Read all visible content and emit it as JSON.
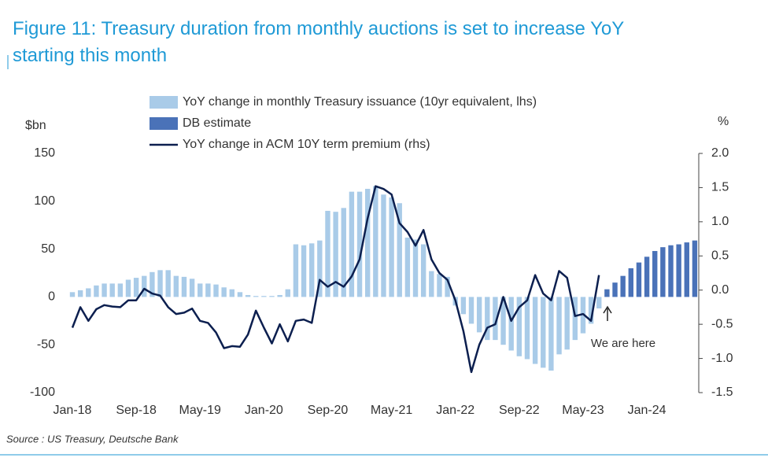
{
  "chart_data": {
    "type": "bar_line",
    "title_lines": [
      "Figure 11: Treasury duration from monthly auctions is set to increase YoY",
      "starting this month"
    ],
    "y_label": "$bn",
    "y2_label": "%",
    "source": "Source : US Treasury, Deutsche Bank",
    "annotation": "We are here",
    "categories": [
      "Jan-18",
      null,
      null,
      null,
      null,
      null,
      null,
      null,
      "Sep-18",
      null,
      null,
      null,
      null,
      null,
      null,
      null,
      "May-19",
      null,
      null,
      null,
      null,
      null,
      null,
      null,
      "Jan-20",
      null,
      null,
      null,
      null,
      null,
      null,
      null,
      "Sep-20",
      null,
      null,
      null,
      null,
      null,
      null,
      null,
      "May-21",
      null,
      null,
      null,
      null,
      null,
      null,
      null,
      "Jan-22",
      null,
      null,
      null,
      null,
      null,
      null,
      null,
      "Sep-22",
      null,
      null,
      null,
      null,
      null,
      null,
      null,
      "May-23",
      null,
      null,
      null,
      null,
      null,
      null,
      null,
      "Jan-24",
      null,
      null,
      null,
      null,
      null,
      null
    ],
    "series": [
      {
        "name": "YoY change in monthly Treasury issuance (10yr equivalent, lhs)",
        "type": "bar",
        "color": "#a9cbe8",
        "values": [
          5,
          7,
          9,
          12,
          14,
          14,
          14,
          18,
          20,
          22,
          26,
          28,
          28,
          22,
          21,
          19,
          14,
          14,
          13,
          10,
          8,
          5,
          2,
          1,
          1,
          1,
          2,
          8,
          55,
          54,
          56,
          59,
          90,
          89,
          93,
          110,
          110,
          113,
          116,
          107,
          104,
          98,
          62,
          60,
          55,
          27,
          24,
          21,
          -9,
          -18,
          -28,
          -37,
          -45,
          -45,
          -50,
          -56,
          -62,
          -65,
          -70,
          -74,
          -77,
          -60,
          -55,
          -45,
          -38,
          -28,
          -12,
          null,
          null,
          null,
          null,
          null,
          null,
          null,
          null,
          null,
          null,
          null,
          null
        ]
      },
      {
        "name": "DB estimate",
        "type": "bar",
        "color": "#4a72b8",
        "values": [
          null,
          null,
          null,
          null,
          null,
          null,
          null,
          null,
          null,
          null,
          null,
          null,
          null,
          null,
          null,
          null,
          null,
          null,
          null,
          null,
          null,
          null,
          null,
          null,
          null,
          null,
          null,
          null,
          null,
          null,
          null,
          null,
          null,
          null,
          null,
          null,
          null,
          null,
          null,
          null,
          null,
          null,
          null,
          null,
          null,
          null,
          null,
          null,
          null,
          null,
          null,
          null,
          null,
          null,
          null,
          null,
          null,
          null,
          null,
          null,
          null,
          null,
          null,
          null,
          null,
          null,
          null,
          8,
          15,
          22,
          30,
          36,
          42,
          48,
          52,
          54,
          55,
          57,
          59
        ]
      },
      {
        "name": "YoY change in ACM 10Y term premium (rhs)",
        "type": "line",
        "axis": "y2",
        "color": "#0c1f4f",
        "values": [
          -0.55,
          -0.25,
          -0.45,
          -0.28,
          -0.22,
          -0.24,
          -0.25,
          -0.15,
          -0.15,
          0.02,
          -0.05,
          -0.08,
          -0.25,
          -0.35,
          -0.33,
          -0.27,
          -0.45,
          -0.48,
          -0.62,
          -0.85,
          -0.82,
          -0.83,
          -0.65,
          -0.3,
          -0.55,
          -0.78,
          -0.5,
          -0.75,
          -0.45,
          -0.43,
          -0.48,
          0.15,
          0.05,
          0.12,
          0.05,
          0.2,
          0.45,
          1.05,
          1.52,
          1.48,
          1.4,
          0.98,
          0.85,
          0.65,
          0.88,
          0.45,
          0.25,
          0.15,
          -0.15,
          -0.6,
          -1.2,
          -0.8,
          -0.55,
          -0.5,
          -0.1,
          -0.45,
          -0.25,
          -0.15,
          0.22,
          -0.05,
          -0.15,
          0.28,
          0.18,
          -0.38,
          -0.35,
          -0.45,
          0.22,
          null,
          null,
          null,
          null,
          null,
          null,
          null,
          null,
          null,
          null,
          null,
          null
        ]
      }
    ],
    "ylim": [
      -100,
      150
    ],
    "yticks": [
      -100,
      -50,
      0,
      50,
      100,
      150
    ],
    "y2lim": [
      -1.5,
      2.0
    ],
    "y2ticks": [
      -1.5,
      {
        "value": -1.0,
        "label": "-1.0"
      },
      -0.5,
      {
        "value": 0.0,
        "label": "0.0"
      },
      0.5,
      {
        "value": 1.0,
        "label": "1.0"
      },
      1.5,
      {
        "value": 2.0,
        "label": "2.0"
      }
    ]
  }
}
